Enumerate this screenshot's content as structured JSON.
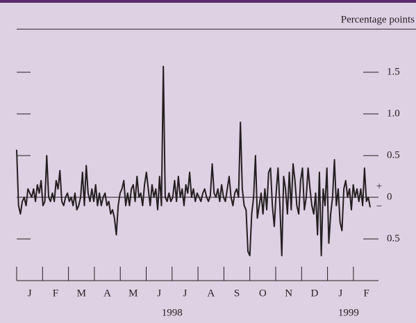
{
  "chart_data": {
    "type": "line",
    "unit_label": "Percentage points",
    "ylim": [
      -1.0,
      2.0
    ],
    "yticks": [
      {
        "value": -0.5,
        "label": "0.5"
      },
      0,
      0.5,
      {
        "value": 1.0,
        "label": "1.0"
      },
      1.5
    ],
    "zero_signs": [
      "+",
      "−"
    ],
    "months": [
      "J",
      "F",
      "M",
      "A",
      "M",
      "J",
      "J",
      "A",
      "S",
      "O",
      "N",
      "D",
      "J",
      "F"
    ],
    "year_labels": [
      "1998",
      "1999"
    ],
    "color": "#231f20",
    "values": [
      0.57,
      -0.1,
      -0.2,
      -0.05,
      0.0,
      -0.1,
      0.1,
      0.05,
      0.0,
      0.1,
      -0.05,
      0.15,
      0.05,
      0.2,
      -0.1,
      -0.05,
      0.5,
      0.0,
      -0.05,
      0.05,
      -0.05,
      0.2,
      0.1,
      0.32,
      -0.05,
      -0.1,
      0.0,
      0.05,
      -0.05,
      0.0,
      -0.1,
      0.05,
      -0.15,
      -0.1,
      0.0,
      0.3,
      -0.1,
      0.38,
      0.05,
      -0.05,
      0.1,
      -0.05,
      0.15,
      -0.1,
      0.05,
      -0.1,
      0.0,
      0.05,
      -0.1,
      -0.05,
      -0.2,
      -0.15,
      -0.25,
      -0.45,
      -0.1,
      0.05,
      0.1,
      0.2,
      -0.1,
      0.05,
      -0.1,
      0.1,
      0.15,
      -0.05,
      0.25,
      0.0,
      0.05,
      -0.1,
      0.15,
      0.3,
      0.1,
      -0.1,
      0.15,
      0.0,
      0.1,
      -0.15,
      0.25,
      -0.1,
      1.57,
      0.0,
      -0.05,
      0.05,
      -0.05,
      0.0,
      0.2,
      -0.05,
      0.25,
      0.0,
      0.1,
      -0.1,
      0.15,
      0.05,
      0.3,
      0.0,
      0.1,
      -0.05,
      0.05,
      0.0,
      -0.05,
      0.05,
      0.1,
      0.0,
      -0.05,
      0.02,
      0.4,
      0.05,
      0.0,
      0.1,
      -0.05,
      0.15,
      0.0,
      -0.05,
      0.1,
      0.25,
      0.0,
      -0.1,
      0.05,
      0.1,
      0.0,
      0.9,
      0.1,
      -0.1,
      -0.15,
      -0.65,
      -0.7,
      -0.2,
      0.0,
      0.5,
      -0.25,
      -0.1,
      0.05,
      -0.2,
      0.1,
      -0.15,
      0.3,
      0.35,
      -0.1,
      -0.35,
      0.05,
      0.35,
      -0.1,
      -0.7,
      0.25,
      0.1,
      -0.2,
      0.3,
      -0.15,
      0.4,
      0.2,
      -0.1,
      -0.2,
      0.2,
      0.35,
      -0.15,
      0.0,
      0.35,
      0.1,
      -0.1,
      -0.2,
      0.05,
      -0.45,
      0.3,
      -0.7,
      0.1,
      -0.1,
      0.35,
      -0.55,
      -0.2,
      0.0,
      0.45,
      -0.1,
      0.1,
      -0.3,
      -0.4,
      0.1,
      0.2,
      0.0,
      0.1,
      -0.15,
      0.15,
      0.0,
      0.1,
      -0.05,
      0.1,
      -0.1,
      0.35,
      -0.05,
      0.0,
      -0.12
    ]
  }
}
